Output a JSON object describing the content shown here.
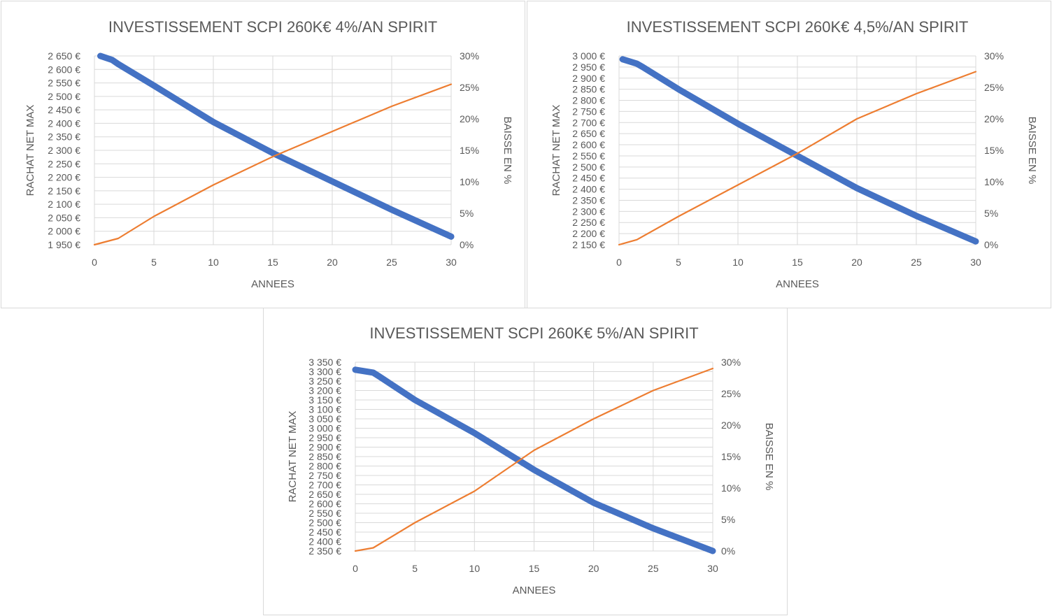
{
  "colors": {
    "rachat": "#4472c4",
    "baisse": "#ed7d31",
    "grid": "#d9d9d9",
    "text": "#595959"
  },
  "chart_data": [
    {
      "type": "line",
      "title": "INVESTISSEMENT SCPI 260K€ 4%/AN SPIRIT",
      "xlabel": "ANNEES",
      "ylabel": "RACHAT NET MAX",
      "y2label": "BAISSE EN %",
      "xlim": [
        0,
        30
      ],
      "ylim": [
        1950,
        2650
      ],
      "y2lim": [
        0,
        0.3
      ],
      "xticks": [
        "0",
        "5",
        "10",
        "15",
        "20",
        "25",
        "30"
      ],
      "yticks": [
        "1 950 €",
        "2 000 €",
        "2 050 €",
        "2 100 €",
        "2 150 €",
        "2 200 €",
        "2 250 €",
        "2 300 €",
        "2 350 €",
        "2 400 €",
        "2 450 €",
        "2 500 €",
        "2 550 €",
        "2 600 €",
        "2 650 €"
      ],
      "y2ticks": [
        "0%",
        "5%",
        "10%",
        "15%",
        "20%",
        "25%",
        "30%"
      ],
      "series": [
        {
          "axis": "left",
          "x": [
            0.5,
            1.5,
            2,
            5,
            10,
            15,
            20,
            25,
            30
          ],
          "values": [
            2650,
            2635,
            2620,
            2540,
            2405,
            2290,
            2185,
            2080,
            1980
          ]
        },
        {
          "axis": "right",
          "x": [
            0,
            2,
            5,
            10,
            15,
            20,
            25,
            30
          ],
          "values": [
            0,
            0.01,
            0.045,
            0.095,
            0.14,
            0.18,
            0.22,
            0.255
          ]
        }
      ]
    },
    {
      "type": "line",
      "title": "INVESTISSEMENT SCPI 260K€ 4,5%/AN SPIRIT",
      "xlabel": "ANNEES",
      "ylabel": "RACHAT NET MAX",
      "y2label": "BAISSE EN %",
      "xlim": [
        0,
        30
      ],
      "ylim": [
        2150,
        3000
      ],
      "y2lim": [
        0,
        0.3
      ],
      "xticks": [
        "0",
        "5",
        "10",
        "15",
        "20",
        "25",
        "30"
      ],
      "yticks": [
        "2 150 €",
        "2 200 €",
        "2 250 €",
        "2 300 €",
        "2 350 €",
        "2 400 €",
        "2 450 €",
        "2 500 €",
        "2 550 €",
        "2 600 €",
        "2 650 €",
        "2 700 €",
        "2 750 €",
        "2 800 €",
        "2 850 €",
        "2 900 €",
        "2 950 €",
        "3 000 €"
      ],
      "y2ticks": [
        "0%",
        "5%",
        "10%",
        "15%",
        "20%",
        "25%",
        "30%"
      ],
      "series": [
        {
          "axis": "left",
          "x": [
            0.3,
            1.5,
            2,
            5,
            10,
            15,
            20,
            25,
            30
          ],
          "values": [
            2985,
            2965,
            2950,
            2850,
            2695,
            2550,
            2405,
            2280,
            2165
          ]
        },
        {
          "axis": "right",
          "x": [
            0,
            1.5,
            5,
            10,
            15,
            20,
            25,
            30
          ],
          "values": [
            0,
            0.008,
            0.045,
            0.095,
            0.145,
            0.2,
            0.24,
            0.275
          ]
        }
      ]
    },
    {
      "type": "line",
      "title": "INVESTISSEMENT SCPI 260K€ 5%/AN SPIRIT",
      "xlabel": "ANNEES",
      "ylabel": "RACHAT NET MAX",
      "y2label": "BAISSE EN %",
      "xlim": [
        0,
        30
      ],
      "ylim": [
        2350,
        3350
      ],
      "y2lim": [
        0,
        0.3
      ],
      "xticks": [
        "0",
        "5",
        "10",
        "15",
        "20",
        "25",
        "30"
      ],
      "yticks": [
        "2 350 €",
        "2 400 €",
        "2 450 €",
        "2 500 €",
        "2 550 €",
        "2 600 €",
        "2 650 €",
        "2 700 €",
        "2 750 €",
        "2 800 €",
        "2 850 €",
        "2 900 €",
        "2 950 €",
        "3 000 €",
        "3 050 €",
        "3 100 €",
        "3 150 €",
        "3 200 €",
        "3 250 €",
        "3 300 €",
        "3 350 €"
      ],
      "y2ticks": [
        "0%",
        "5%",
        "10%",
        "15%",
        "20%",
        "25%",
        "30%"
      ],
      "series": [
        {
          "axis": "left",
          "x": [
            0,
            1.5,
            2,
            5,
            10,
            15,
            20,
            25,
            30
          ],
          "values": [
            3310,
            3295,
            3275,
            3150,
            2975,
            2780,
            2605,
            2470,
            2350
          ]
        },
        {
          "axis": "right",
          "x": [
            0,
            1.5,
            5,
            10,
            15,
            20,
            25,
            30
          ],
          "values": [
            0,
            0.005,
            0.045,
            0.095,
            0.16,
            0.21,
            0.255,
            0.29
          ]
        }
      ]
    }
  ]
}
